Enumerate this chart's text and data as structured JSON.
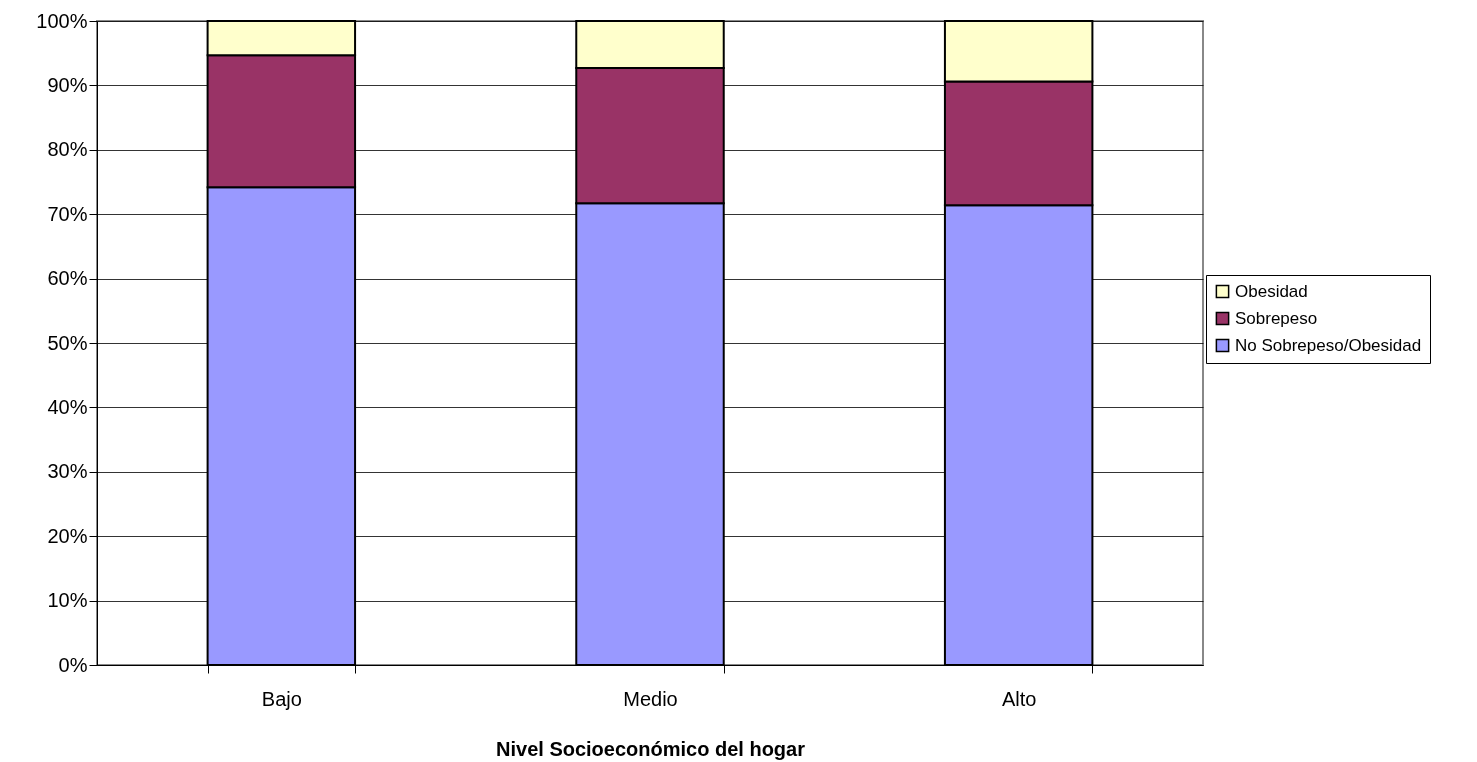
{
  "chart_data": {
    "type": "bar",
    "stacked": true,
    "xlabel": "Nivel Socioeconómico del hogar",
    "categories": [
      "Bajo",
      "Medio",
      "Alto"
    ],
    "series": [
      {
        "name": "No Sobrepeso/Obesidad",
        "color": "#9999ff",
        "values": [
          74.2,
          71.7,
          71.4
        ]
      },
      {
        "name": "Sobrepeso",
        "color": "#993366",
        "values": [
          20.5,
          21.0,
          19.2
        ]
      },
      {
        "name": "Obesidad",
        "color": "#ffffcc",
        "values": [
          5.3,
          7.3,
          9.4
        ]
      }
    ],
    "ylim": [
      0,
      100
    ],
    "yticks": [
      {
        "value": 0,
        "label": "0%"
      },
      {
        "value": 10,
        "label": "10%"
      },
      {
        "value": 20,
        "label": "20%"
      },
      {
        "value": 30,
        "label": "30%"
      },
      {
        "value": 40,
        "label": "40%"
      },
      {
        "value": 50,
        "label": "50%"
      },
      {
        "value": 60,
        "label": "60%"
      },
      {
        "value": 70,
        "label": "70%"
      },
      {
        "value": 80,
        "label": "80%"
      },
      {
        "value": 90,
        "label": "90%"
      },
      {
        "value": 100,
        "label": "100%"
      }
    ],
    "grid": "y",
    "legend": "right"
  }
}
